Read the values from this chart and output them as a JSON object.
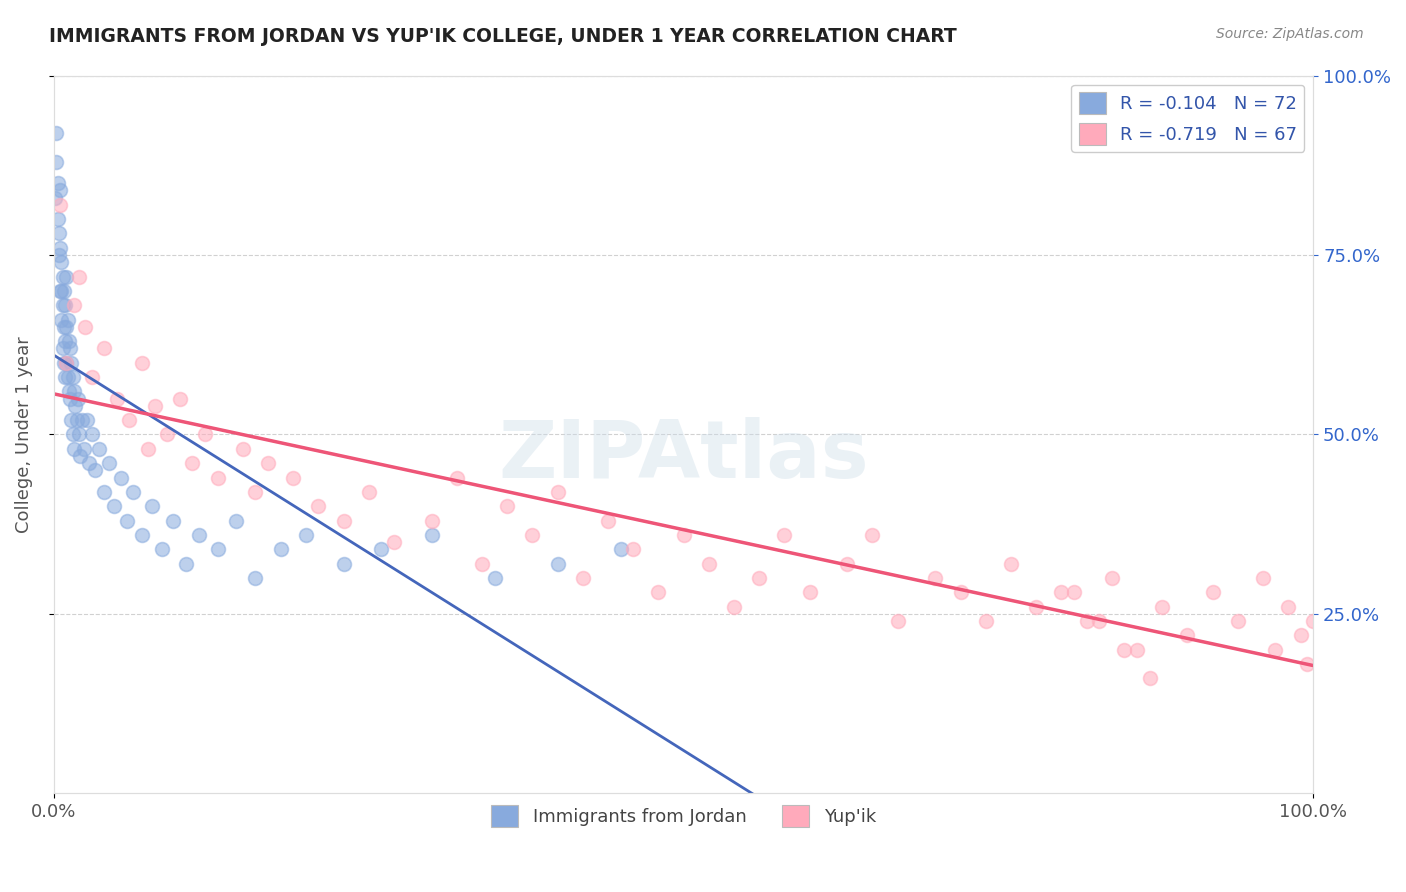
{
  "title": "IMMIGRANTS FROM JORDAN VS YUP'IK COLLEGE, UNDER 1 YEAR CORRELATION CHART",
  "source": "Source: ZipAtlas.com",
  "ylabel": "College, Under 1 year",
  "legend_blue_label": "Immigrants from Jordan",
  "legend_pink_label": "Yup'ik",
  "legend_blue_r": "R = -0.104",
  "legend_blue_n": "N = 72",
  "legend_pink_r": "R = -0.719",
  "legend_pink_n": "N = 67",
  "blue_color": "#88AADD",
  "pink_color": "#FFAABB",
  "blue_line_color": "#4466BB",
  "pink_line_color": "#EE5577",
  "dashed_line_color": "#AABBCC",
  "background_color": "#FFFFFF",
  "watermark": "ZIPAtlas",
  "blue_scatter_x": [
    0.001,
    0.002,
    0.002,
    0.003,
    0.003,
    0.004,
    0.004,
    0.005,
    0.005,
    0.005,
    0.006,
    0.006,
    0.006,
    0.007,
    0.007,
    0.007,
    0.008,
    0.008,
    0.008,
    0.009,
    0.009,
    0.009,
    0.01,
    0.01,
    0.01,
    0.011,
    0.011,
    0.012,
    0.012,
    0.013,
    0.013,
    0.014,
    0.014,
    0.015,
    0.015,
    0.016,
    0.016,
    0.017,
    0.018,
    0.019,
    0.02,
    0.021,
    0.022,
    0.024,
    0.026,
    0.028,
    0.03,
    0.033,
    0.036,
    0.04,
    0.044,
    0.048,
    0.053,
    0.058,
    0.063,
    0.07,
    0.078,
    0.086,
    0.095,
    0.105,
    0.115,
    0.13,
    0.145,
    0.16,
    0.18,
    0.2,
    0.23,
    0.26,
    0.3,
    0.35,
    0.4,
    0.45
  ],
  "blue_scatter_y": [
    0.83,
    0.88,
    0.92,
    0.85,
    0.8,
    0.78,
    0.75,
    0.84,
    0.76,
    0.7,
    0.74,
    0.7,
    0.66,
    0.72,
    0.68,
    0.62,
    0.7,
    0.65,
    0.6,
    0.68,
    0.63,
    0.58,
    0.72,
    0.65,
    0.6,
    0.66,
    0.58,
    0.63,
    0.56,
    0.62,
    0.55,
    0.6,
    0.52,
    0.58,
    0.5,
    0.56,
    0.48,
    0.54,
    0.52,
    0.55,
    0.5,
    0.47,
    0.52,
    0.48,
    0.52,
    0.46,
    0.5,
    0.45,
    0.48,
    0.42,
    0.46,
    0.4,
    0.44,
    0.38,
    0.42,
    0.36,
    0.4,
    0.34,
    0.38,
    0.32,
    0.36,
    0.34,
    0.38,
    0.3,
    0.34,
    0.36,
    0.32,
    0.34,
    0.36,
    0.3,
    0.32,
    0.34
  ],
  "pink_scatter_x": [
    0.005,
    0.01,
    0.016,
    0.02,
    0.025,
    0.03,
    0.04,
    0.05,
    0.06,
    0.07,
    0.075,
    0.08,
    0.09,
    0.1,
    0.11,
    0.12,
    0.13,
    0.15,
    0.16,
    0.17,
    0.19,
    0.21,
    0.23,
    0.25,
    0.27,
    0.3,
    0.32,
    0.34,
    0.36,
    0.38,
    0.4,
    0.42,
    0.44,
    0.46,
    0.48,
    0.5,
    0.52,
    0.54,
    0.56,
    0.58,
    0.6,
    0.63,
    0.65,
    0.67,
    0.7,
    0.72,
    0.74,
    0.76,
    0.78,
    0.8,
    0.82,
    0.84,
    0.86,
    0.88,
    0.9,
    0.92,
    0.94,
    0.96,
    0.97,
    0.98,
    0.99,
    0.995,
    1.0,
    0.81,
    0.83,
    0.85,
    0.87
  ],
  "pink_scatter_y": [
    0.82,
    0.6,
    0.68,
    0.72,
    0.65,
    0.58,
    0.62,
    0.55,
    0.52,
    0.6,
    0.48,
    0.54,
    0.5,
    0.55,
    0.46,
    0.5,
    0.44,
    0.48,
    0.42,
    0.46,
    0.44,
    0.4,
    0.38,
    0.42,
    0.35,
    0.38,
    0.44,
    0.32,
    0.4,
    0.36,
    0.42,
    0.3,
    0.38,
    0.34,
    0.28,
    0.36,
    0.32,
    0.26,
    0.3,
    0.36,
    0.28,
    0.32,
    0.36,
    0.24,
    0.3,
    0.28,
    0.24,
    0.32,
    0.26,
    0.28,
    0.24,
    0.3,
    0.2,
    0.26,
    0.22,
    0.28,
    0.24,
    0.3,
    0.2,
    0.26,
    0.22,
    0.18,
    0.24,
    0.28,
    0.24,
    0.2,
    0.16
  ]
}
